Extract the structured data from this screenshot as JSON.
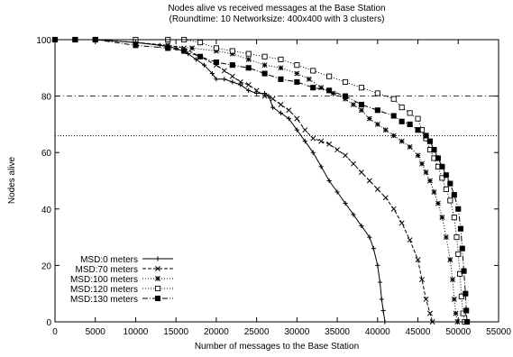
{
  "chart_data": {
    "type": "line",
    "title": "Nodes alive vs received messages at the Base Station",
    "subtitle": "(Roundtime: 10 Networksize: 400x400 with 3 clusters)",
    "xlabel": "Number of messages to the Base Station",
    "ylabel": "Nodes alive",
    "xlim": [
      0,
      55000
    ],
    "ylim": [
      0,
      100
    ],
    "x_ticks": [
      "0",
      "5000",
      "10000",
      "15000",
      "20000",
      "25000",
      "30000",
      "35000",
      "40000",
      "45000",
      "50000",
      "55000"
    ],
    "y_ticks": [
      "0",
      "20",
      "40",
      "60",
      "80",
      "100"
    ],
    "legend_position": "bottom-left",
    "grid": false,
    "reference_lines": [
      80,
      66
    ],
    "series": [
      {
        "name": "MSD:0 meters",
        "marker": "plus",
        "dash": "solid",
        "points": [
          [
            0,
            100
          ],
          [
            2500,
            100
          ],
          [
            5000,
            100
          ],
          [
            10000,
            99
          ],
          [
            13000,
            98
          ],
          [
            15000,
            97
          ],
          [
            16500,
            95
          ],
          [
            17500,
            93
          ],
          [
            18500,
            91
          ],
          [
            19500,
            88
          ],
          [
            20000,
            86
          ],
          [
            21000,
            86
          ],
          [
            22000,
            85
          ],
          [
            23000,
            84
          ],
          [
            24000,
            82
          ],
          [
            25000,
            81
          ],
          [
            26000,
            81
          ],
          [
            26500,
            80
          ],
          [
            27000,
            76
          ],
          [
            28000,
            74
          ],
          [
            29000,
            72
          ],
          [
            30000,
            68
          ],
          [
            31000,
            64
          ],
          [
            32000,
            60
          ],
          [
            33000,
            55
          ],
          [
            34000,
            50
          ],
          [
            35000,
            46
          ],
          [
            36000,
            42
          ],
          [
            37000,
            38
          ],
          [
            38000,
            34
          ],
          [
            39000,
            30
          ],
          [
            39500,
            26
          ],
          [
            40000,
            20
          ],
          [
            40300,
            14
          ],
          [
            40500,
            8
          ],
          [
            40700,
            4
          ],
          [
            40900,
            0
          ]
        ]
      },
      {
        "name": "MSD:70 meters",
        "marker": "x",
        "dash": "dashed",
        "points": [
          [
            0,
            100
          ],
          [
            2500,
            100
          ],
          [
            5000,
            100
          ],
          [
            10000,
            99
          ],
          [
            14000,
            98
          ],
          [
            16000,
            97
          ],
          [
            18000,
            94
          ],
          [
            20000,
            91
          ],
          [
            21000,
            89
          ],
          [
            22000,
            87
          ],
          [
            23000,
            85
          ],
          [
            24000,
            84
          ],
          [
            25000,
            82
          ],
          [
            26000,
            80
          ],
          [
            27000,
            79
          ],
          [
            28000,
            77
          ],
          [
            29000,
            75
          ],
          [
            30000,
            72
          ],
          [
            31000,
            68
          ],
          [
            32000,
            65
          ],
          [
            33000,
            64
          ],
          [
            34000,
            63
          ],
          [
            35000,
            61
          ],
          [
            36000,
            59
          ],
          [
            37000,
            56
          ],
          [
            38000,
            53
          ],
          [
            39000,
            50
          ],
          [
            40000,
            47
          ],
          [
            41000,
            44
          ],
          [
            42000,
            40
          ],
          [
            43000,
            35
          ],
          [
            44000,
            29
          ],
          [
            45000,
            22
          ],
          [
            45500,
            15
          ],
          [
            46000,
            8
          ],
          [
            46500,
            3
          ],
          [
            46800,
            0
          ]
        ]
      },
      {
        "name": "MSD:100 meters",
        "marker": "star",
        "dash": "dotted",
        "points": [
          [
            0,
            100
          ],
          [
            2500,
            100
          ],
          [
            5000,
            100
          ],
          [
            10000,
            99
          ],
          [
            14000,
            98
          ],
          [
            17000,
            97
          ],
          [
            20000,
            96
          ],
          [
            22000,
            95
          ],
          [
            24000,
            93
          ],
          [
            26000,
            91
          ],
          [
            28000,
            90
          ],
          [
            30000,
            88
          ],
          [
            31500,
            86
          ],
          [
            33000,
            83
          ],
          [
            34500,
            81
          ],
          [
            36000,
            79
          ],
          [
            37000,
            77
          ],
          [
            38000,
            75
          ],
          [
            39000,
            72
          ],
          [
            40000,
            70
          ],
          [
            41000,
            68
          ],
          [
            42000,
            66
          ],
          [
            43000,
            64
          ],
          [
            44000,
            62
          ],
          [
            45000,
            59
          ],
          [
            45500,
            56
          ],
          [
            46000,
            53
          ],
          [
            46500,
            50
          ],
          [
            47000,
            46
          ],
          [
            47500,
            42
          ],
          [
            48000,
            37
          ],
          [
            48500,
            30
          ],
          [
            49000,
            22
          ],
          [
            49300,
            15
          ],
          [
            49500,
            8
          ],
          [
            49700,
            3
          ],
          [
            49900,
            0
          ]
        ]
      },
      {
        "name": "MSD:120 meters",
        "marker": "square",
        "dash": "dotted",
        "points": [
          [
            0,
            100
          ],
          [
            2500,
            100
          ],
          [
            5000,
            100
          ],
          [
            10000,
            100
          ],
          [
            14000,
            100
          ],
          [
            16000,
            100
          ],
          [
            18000,
            99
          ],
          [
            20000,
            97
          ],
          [
            22000,
            96
          ],
          [
            24000,
            95
          ],
          [
            26000,
            94
          ],
          [
            28000,
            93
          ],
          [
            30000,
            91
          ],
          [
            32000,
            89
          ],
          [
            34000,
            87
          ],
          [
            36000,
            85
          ],
          [
            38000,
            83
          ],
          [
            40000,
            81
          ],
          [
            42000,
            79
          ],
          [
            43000,
            76
          ],
          [
            44000,
            74
          ],
          [
            45000,
            72
          ],
          [
            45500,
            68
          ],
          [
            46000,
            65
          ],
          [
            46500,
            61
          ],
          [
            47000,
            58
          ],
          [
            47500,
            55
          ],
          [
            48000,
            51
          ],
          [
            48500,
            47
          ],
          [
            49000,
            43
          ],
          [
            49500,
            37
          ],
          [
            49800,
            30
          ],
          [
            50000,
            24
          ],
          [
            50200,
            17
          ],
          [
            50400,
            9
          ],
          [
            50600,
            3
          ],
          [
            50800,
            0
          ]
        ]
      },
      {
        "name": "MSD:130 meters",
        "marker": "filled-square",
        "dash": "dashdot",
        "points": [
          [
            0,
            100
          ],
          [
            2500,
            100
          ],
          [
            5000,
            100
          ],
          [
            10000,
            98
          ],
          [
            14000,
            97
          ],
          [
            16000,
            96
          ],
          [
            18000,
            94
          ],
          [
            20000,
            92
          ],
          [
            22000,
            91
          ],
          [
            24000,
            90
          ],
          [
            26000,
            88
          ],
          [
            28000,
            86
          ],
          [
            30000,
            85
          ],
          [
            32000,
            83
          ],
          [
            34000,
            82
          ],
          [
            36000,
            80
          ],
          [
            38000,
            77
          ],
          [
            40000,
            75
          ],
          [
            42000,
            73
          ],
          [
            43000,
            71
          ],
          [
            44000,
            70
          ],
          [
            45000,
            68
          ],
          [
            46000,
            66
          ],
          [
            46500,
            64
          ],
          [
            47000,
            61
          ],
          [
            47500,
            58
          ],
          [
            48000,
            55
          ],
          [
            48500,
            52
          ],
          [
            49000,
            49
          ],
          [
            49500,
            45
          ],
          [
            50000,
            40
          ],
          [
            50300,
            33
          ],
          [
            50500,
            26
          ],
          [
            50700,
            18
          ],
          [
            50900,
            10
          ],
          [
            51000,
            4
          ],
          [
            51100,
            0
          ]
        ]
      }
    ]
  }
}
